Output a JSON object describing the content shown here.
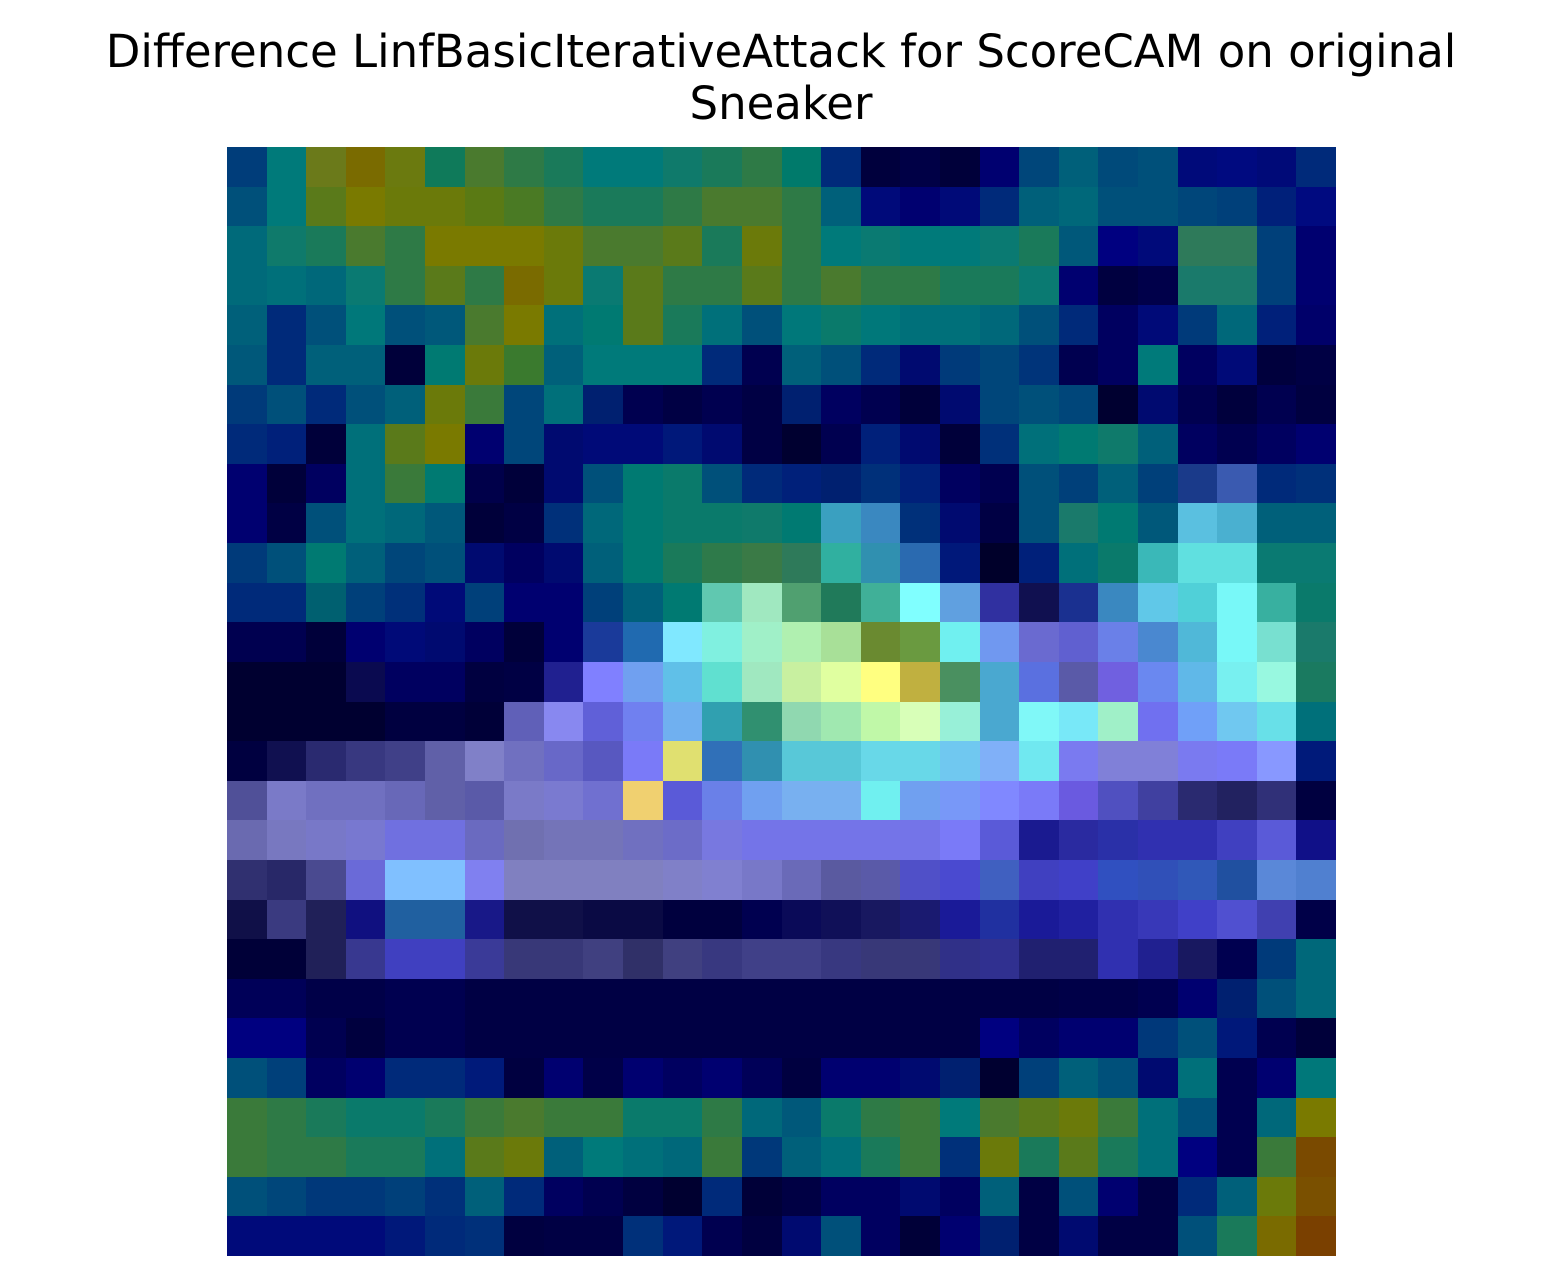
{
  "figure": {
    "title_line1": "Difference LinfBasicIterativeAttack for ScoreCAM on original",
    "title_line2": "Sneaker"
  },
  "image": {
    "grid_size": 28,
    "palette": "cell colors sampled approximately from heatmap overlay",
    "rows": [
      [
        "#003d7a",
        "#007a7a",
        "#6b7a1a",
        "#7a6b00",
        "#6b7a0f",
        "#0f7a5a",
        "#4a7a2e",
        "#2e7a46",
        "#1a7a5a",
        "#007a7a",
        "#007a7a",
        "#0f7a6b",
        "#1a7a5a",
        "#2e7a46",
        "#007a6b",
        "#002a7a",
        "#00003d",
        "#000046",
        "#00003a",
        "#000070",
        "#00467a",
        "#00607a",
        "#004a7a",
        "#00507a",
        "#000a7a",
        "#000a80",
        "#000a78",
        "#002a7a"
      ],
      [
        "#00507a",
        "#007a7a",
        "#5a7a1a",
        "#7a7a00",
        "#6b7a0a",
        "#6b7a0a",
        "#5a7a14",
        "#4a7a24",
        "#2e7a46",
        "#1a7a5a",
        "#1a7a5a",
        "#2e7a46",
        "#4a7a2e",
        "#4a7a2e",
        "#2e7a46",
        "#00607a",
        "#000a7a",
        "#000070",
        "#000a78",
        "#002a7a",
        "#00607a",
        "#00687a",
        "#00507a",
        "#00507a",
        "#00467a",
        "#00407a",
        "#00207a",
        "#000a80"
      ],
      [
        "#006a7a",
        "#0f7a6b",
        "#1a7a5a",
        "#4a7a2e",
        "#2e7a46",
        "#7a7a00",
        "#7a7a00",
        "#7a7a00",
        "#6b7a0a",
        "#4a7a2e",
        "#4a7a2e",
        "#5a7a1a",
        "#1a7a5a",
        "#6b7a0a",
        "#2e7a46",
        "#007a7a",
        "#0a7a72",
        "#007a7a",
        "#007a7a",
        "#0a7a72",
        "#1a7a5a",
        "#00587a",
        "#000080",
        "#000a7a",
        "#2e7a5a",
        "#2e7a5a",
        "#00407a",
        "#000070"
      ],
      [
        "#006a7a",
        "#00707a",
        "#00687a",
        "#0a7a72",
        "#2e7a46",
        "#5a7a1a",
        "#2e7a46",
        "#7a6b00",
        "#6b7a0a",
        "#0a7a72",
        "#5a7a1a",
        "#2e7a46",
        "#2e7a46",
        "#5a7a1a",
        "#2e7a46",
        "#4a7a2e",
        "#2e7a46",
        "#2e7a46",
        "#1a7a5a",
        "#1a7a5a",
        "#0a7a72",
        "#000070",
        "#000040",
        "#00004a",
        "#1a7a6b",
        "#1a7a6b",
        "#00407a",
        "#000070"
      ],
      [
        "#00607a",
        "#002a7a",
        "#00507a",
        "#00787a",
        "#00507a",
        "#00587a",
        "#4a7a2e",
        "#7a7a00",
        "#00707a",
        "#007a72",
        "#5a7a1a",
        "#1a7a5a",
        "#00707a",
        "#00507a",
        "#00787a",
        "#0a7a6b",
        "#00787a",
        "#00707a",
        "#00707a",
        "#00687a",
        "#00507a",
        "#002a7a",
        "#000060",
        "#000a78",
        "#003a7a",
        "#00687a",
        "#00207a",
        "#00006a"
      ],
      [
        "#00587a",
        "#002a7a",
        "#00607a",
        "#00607a",
        "#00003a",
        "#007a72",
        "#6b7a0a",
        "#3a7a2e",
        "#00607a",
        "#007a7a",
        "#007a7a",
        "#007a7a",
        "#002a7a",
        "#000050",
        "#00607a",
        "#00507a",
        "#002a7a",
        "#000a70",
        "#003a7a",
        "#00467a",
        "#00347a",
        "#000050",
        "#000060",
        "#007a7a",
        "#000060",
        "#000a78",
        "#00003d",
        "#000044"
      ],
      [
        "#003a7a",
        "#00507a",
        "#002a7a",
        "#00507a",
        "#00607a",
        "#6b7a0a",
        "#3a7a3a",
        "#00467a",
        "#00707a",
        "#002070",
        "#000050",
        "#000044",
        "#000050",
        "#000044",
        "#002070",
        "#000060",
        "#000050",
        "#00003a",
        "#000a70",
        "#00467a",
        "#00507a",
        "#00467a",
        "#000030",
        "#000a70",
        "#000050",
        "#00003d",
        "#000050",
        "#000040"
      ],
      [
        "#002a7a",
        "#00207a",
        "#00003a",
        "#00707a",
        "#5a7a1a",
        "#7a7a00",
        "#000070",
        "#00467a",
        "#000a70",
        "#000a78",
        "#000a78",
        "#00187a",
        "#000a70",
        "#000044",
        "#000030",
        "#000050",
        "#00207a",
        "#000a70",
        "#00003a",
        "#00307a",
        "#00707a",
        "#007a72",
        "#0f7a6b",
        "#00607a",
        "#000060",
        "#000050",
        "#000060",
        "#000070"
      ],
      [
        "#000070",
        "#00003a",
        "#000060",
        "#00707a",
        "#3a7a3a",
        "#007a72",
        "#00004a",
        "#00003a",
        "#000a70",
        "#00507a",
        "#007a72",
        "#0a7a6b",
        "#00507a",
        "#002a7a",
        "#00207a",
        "#002070",
        "#00307a",
        "#00207a",
        "#000060",
        "#000050",
        "#00507a",
        "#00407a",
        "#00607a",
        "#00407a",
        "#1a3a8a",
        "#3a5ab0",
        "#002a7a",
        "#00307a"
      ],
      [
        "#000070",
        "#000044",
        "#00507a",
        "#00707a",
        "#00687a",
        "#00587a",
        "#00003a",
        "#000044",
        "#00307a",
        "#00687a",
        "#007a72",
        "#0a7a6b",
        "#0a7a6b",
        "#0f7a6b",
        "#007a72",
        "#3aa0c0",
        "#3a88c0",
        "#00307a",
        "#000a70",
        "#000044",
        "#00507a",
        "#1a7a6b",
        "#007a72",
        "#00587a",
        "#5ac0e0",
        "#4ab0d0",
        "#00607a",
        "#00607a"
      ],
      [
        "#003a7a",
        "#00507a",
        "#007a72",
        "#00607a",
        "#00467a",
        "#00507a",
        "#000a70",
        "#000060",
        "#000a70",
        "#00607a",
        "#007a72",
        "#1a7a5a",
        "#2e7a4a",
        "#3a7a46",
        "#2e7a5a",
        "#30b0a0",
        "#3090b0",
        "#2a6ab0",
        "#00187a",
        "#00002a",
        "#00207a",
        "#00707a",
        "#0a7a6b",
        "#3ab8b8",
        "#60e0e0",
        "#60e0e0",
        "#0a7a72",
        "#0a7a72"
      ],
      [
        "#002a7a",
        "#002a7a",
        "#006070",
        "#00407a",
        "#00307a",
        "#000a78",
        "#00407a",
        "#000070",
        "#000070",
        "#00407a",
        "#00607a",
        "#007a72",
        "#60c8b0",
        "#a0e8c0",
        "#50a070",
        "#207a5a",
        "#40b098",
        "#80ffff",
        "#60a0e0",
        "#3030a0",
        "#101050",
        "#1a3090",
        "#3a88c0",
        "#60c8e8",
        "#50d0d8",
        "#78f8f8",
        "#38b0a0",
        "#0a7a6b"
      ],
      [
        "#000050",
        "#000050",
        "#00003a",
        "#000070",
        "#000a78",
        "#000a70",
        "#000060",
        "#00003a",
        "#000070",
        "#1a3a9a",
        "#206ab0",
        "#80e8ff",
        "#80f0e0",
        "#a0f0c8",
        "#b0f0b0",
        "#a8e098",
        "#6a8a30",
        "#6a9a40",
        "#70f0f0",
        "#7098f0",
        "#6a6ad0",
        "#6060d0",
        "#6a80e8",
        "#4a88d0",
        "#50b8d8",
        "#78f8f8",
        "#78e0d0",
        "#1a7a6b"
      ],
      [
        "#000030",
        "#000030",
        "#000030",
        "#0a0a50",
        "#000060",
        "#000060",
        "#000040",
        "#000044",
        "#202090",
        "#8080ff",
        "#70a0f0",
        "#60c0e8",
        "#60e0d0",
        "#a0e8c0",
        "#c8f0a0",
        "#e0ffa0",
        "#ffff80",
        "#c0b040",
        "#4a9060",
        "#4aa8d0",
        "#5a70e0",
        "#5a5aa8",
        "#7060e0",
        "#6a88f0",
        "#60b8e8",
        "#78f0f0",
        "#98f8e0",
        "#1a7a60"
      ],
      [
        "#000030",
        "#000030",
        "#000030",
        "#000030",
        "#000040",
        "#000040",
        "#000038",
        "#6060b8",
        "#8888f0",
        "#6060d8",
        "#7080f0",
        "#70b0f0",
        "#30a0b0",
        "#309070",
        "#90d8b0",
        "#a0e8b0",
        "#c0f8a8",
        "#d8ffb8",
        "#98f0d8",
        "#4aa8d0",
        "#80f8f8",
        "#78e8f8",
        "#a0f0c8",
        "#7070f0",
        "#70a0f8",
        "#70c8f0",
        "#68e0e8",
        "#00707a"
      ],
      [
        "#000040",
        "#101050",
        "#2a2a70",
        "#383880",
        "#404088",
        "#6060a8",
        "#8080c8",
        "#7070c0",
        "#6868c8",
        "#5858c0",
        "#7a7af8",
        "#e0e070",
        "#3070b8",
        "#3090b0",
        "#58c8d8",
        "#58c8d8",
        "#68d8e8",
        "#68d8e8",
        "#70c8f0",
        "#80b0f8",
        "#70e8f0",
        "#7a7af0",
        "#8080d8",
        "#8080d8",
        "#7a7af0",
        "#7a7af8",
        "#8898ff",
        "#001a7a"
      ],
      [
        "#505098",
        "#7a7ac8",
        "#7070c0",
        "#7070c0",
        "#6868b8",
        "#6060a8",
        "#5a5aa8",
        "#7a7ac8",
        "#7a7ad0",
        "#7070d0",
        "#f0d070",
        "#5a5ad8",
        "#6a80e8",
        "#70a0f0",
        "#78b0f0",
        "#78b0f0",
        "#70f0f0",
        "#70a0f0",
        "#7898f8",
        "#8088ff",
        "#7a7af8",
        "#6a5ae0",
        "#5050c0",
        "#4040a0",
        "#2a2a70",
        "#222260",
        "#303078",
        "#000040"
      ],
      [
        "#6a6ab0",
        "#7878c0",
        "#7878c8",
        "#7878d0",
        "#7070e0",
        "#7070e0",
        "#6a6ac0",
        "#7070b0",
        "#7474b8",
        "#7474b8",
        "#7070c0",
        "#6c6cc8",
        "#7878e0",
        "#7474e8",
        "#7474e8",
        "#7474e8",
        "#7474e8",
        "#7474e8",
        "#7a7af8",
        "#5a5ad8",
        "#1a1a90",
        "#2a2aa0",
        "#2a30a8",
        "#3030b0",
        "#3030b0",
        "#4040c0",
        "#5a5ad8",
        "#101088"
      ],
      [
        "#303070",
        "#282868",
        "#4a4a90",
        "#6a6ad8",
        "#80c0ff",
        "#80c0ff",
        "#8080f0",
        "#8080c0",
        "#8080c0",
        "#8080c0",
        "#8080c0",
        "#8080c8",
        "#8080d0",
        "#7878c8",
        "#6a6ab8",
        "#5a5aa0",
        "#5a5aa8",
        "#5050c8",
        "#4a4ad0",
        "#4060c0",
        "#4040c0",
        "#4040c8",
        "#3050c0",
        "#3050b8",
        "#3058b8",
        "#2050a0",
        "#5a88d8",
        "#5080d0"
      ],
      [
        "#101048",
        "#3a3a80",
        "#202058",
        "#101080",
        "#2060a0",
        "#2060a0",
        "#181888",
        "#101048",
        "#101048",
        "#0a0a44",
        "#0a0a44",
        "#00003e",
        "#00003e",
        "#000050",
        "#0a0a58",
        "#101058",
        "#181860",
        "#1a1a70",
        "#1a1a98",
        "#2030a0",
        "#1a1a98",
        "#2020a0",
        "#3030b0",
        "#3838b8",
        "#4040c8",
        "#5050d0",
        "#4040b0",
        "#000048"
      ],
      [
        "#000038",
        "#000038",
        "#202058",
        "#383890",
        "#4040c0",
        "#4040c0",
        "#3a3a98",
        "#383878",
        "#383878",
        "#404080",
        "#303068",
        "#404080",
        "#383880",
        "#404088",
        "#404088",
        "#383880",
        "#383878",
        "#383878",
        "#303088",
        "#303090",
        "#202070",
        "#202070",
        "#3030b0",
        "#202090",
        "#181860",
        "#000050",
        "#003a7a",
        "#00687a"
      ],
      [
        "#000058",
        "#000058",
        "#000048",
        "#000048",
        "#000050",
        "#000050",
        "#000044",
        "#000044",
        "#000044",
        "#000044",
        "#000044",
        "#000044",
        "#000044",
        "#000044",
        "#000044",
        "#000044",
        "#000044",
        "#000044",
        "#000044",
        "#000044",
        "#000044",
        "#000048",
        "#000048",
        "#000050",
        "#000070",
        "#002070",
        "#00507a",
        "#00687a"
      ],
      [
        "#000080",
        "#000080",
        "#000050",
        "#00003e",
        "#000050",
        "#000050",
        "#000044",
        "#000044",
        "#000044",
        "#000044",
        "#000044",
        "#000044",
        "#000044",
        "#000044",
        "#000044",
        "#000044",
        "#000044",
        "#000044",
        "#000044",
        "#000080",
        "#000060",
        "#000070",
        "#000070",
        "#00387a",
        "#00507a",
        "#00187a",
        "#000050",
        "#00003a"
      ],
      [
        "#00507a",
        "#00407a",
        "#000060",
        "#000070",
        "#002a7a",
        "#002a7a",
        "#001a7a",
        "#000040",
        "#000070",
        "#000048",
        "#000070",
        "#000060",
        "#000070",
        "#000058",
        "#000040",
        "#000070",
        "#000070",
        "#000a70",
        "#002070",
        "#000030",
        "#00407a",
        "#00607a",
        "#00507a",
        "#000a70",
        "#00707a",
        "#000050",
        "#000070",
        "#00787a"
      ],
      [
        "#3a7a3a",
        "#2e7a46",
        "#1a7a5a",
        "#0a7a6b",
        "#0a7a6b",
        "#1a7a5a",
        "#3a7a3a",
        "#4a7a2e",
        "#3a7a3a",
        "#3a7a3a",
        "#0a7a6b",
        "#0a7a6b",
        "#2e7a46",
        "#00687a",
        "#00587a",
        "#0a7a6b",
        "#2e7a46",
        "#3a7a3a",
        "#007a7a",
        "#4a7a2e",
        "#5a7a1a",
        "#6b7a0a",
        "#3a7a3a",
        "#00707a",
        "#00507a",
        "#000050",
        "#00687a",
        "#7a7a00"
      ],
      [
        "#3a7a3a",
        "#2e7a46",
        "#2e7a46",
        "#1a7a5a",
        "#1a7a5a",
        "#00707a",
        "#5a7a1a",
        "#6b7a0a",
        "#00607a",
        "#007a7a",
        "#00707a",
        "#00687a",
        "#3a7a3a",
        "#00387a",
        "#00607a",
        "#00707a",
        "#1a7a5a",
        "#3a7a3a",
        "#00307a",
        "#6b7a0a",
        "#1a7a5a",
        "#5a7a1a",
        "#1a7a5a",
        "#00707a",
        "#000080",
        "#000050",
        "#3a7a3a",
        "#7a4a00"
      ],
      [
        "#00507a",
        "#00467a",
        "#00387a",
        "#00387a",
        "#00407a",
        "#00307a",
        "#00607a",
        "#002a7a",
        "#000060",
        "#000050",
        "#000040",
        "#000030",
        "#002a7a",
        "#000038",
        "#000044",
        "#000060",
        "#000060",
        "#000a70",
        "#000060",
        "#00607a",
        "#000044",
        "#00507a",
        "#000070",
        "#000044",
        "#002a7a",
        "#00607a",
        "#6b7a0a",
        "#7a5000"
      ],
      [
        "#000a7a",
        "#000a7a",
        "#000a7a",
        "#000a7a",
        "#00187a",
        "#002a7a",
        "#00307a",
        "#000040",
        "#000044",
        "#000044",
        "#00307a",
        "#00187a",
        "#000050",
        "#000040",
        "#000a70",
        "#00507a",
        "#000060",
        "#000038",
        "#000070",
        "#002070",
        "#000044",
        "#000a70",
        "#000044",
        "#000044",
        "#00507a",
        "#1a7a5a",
        "#7a6b00",
        "#7a4000"
      ]
    ]
  }
}
